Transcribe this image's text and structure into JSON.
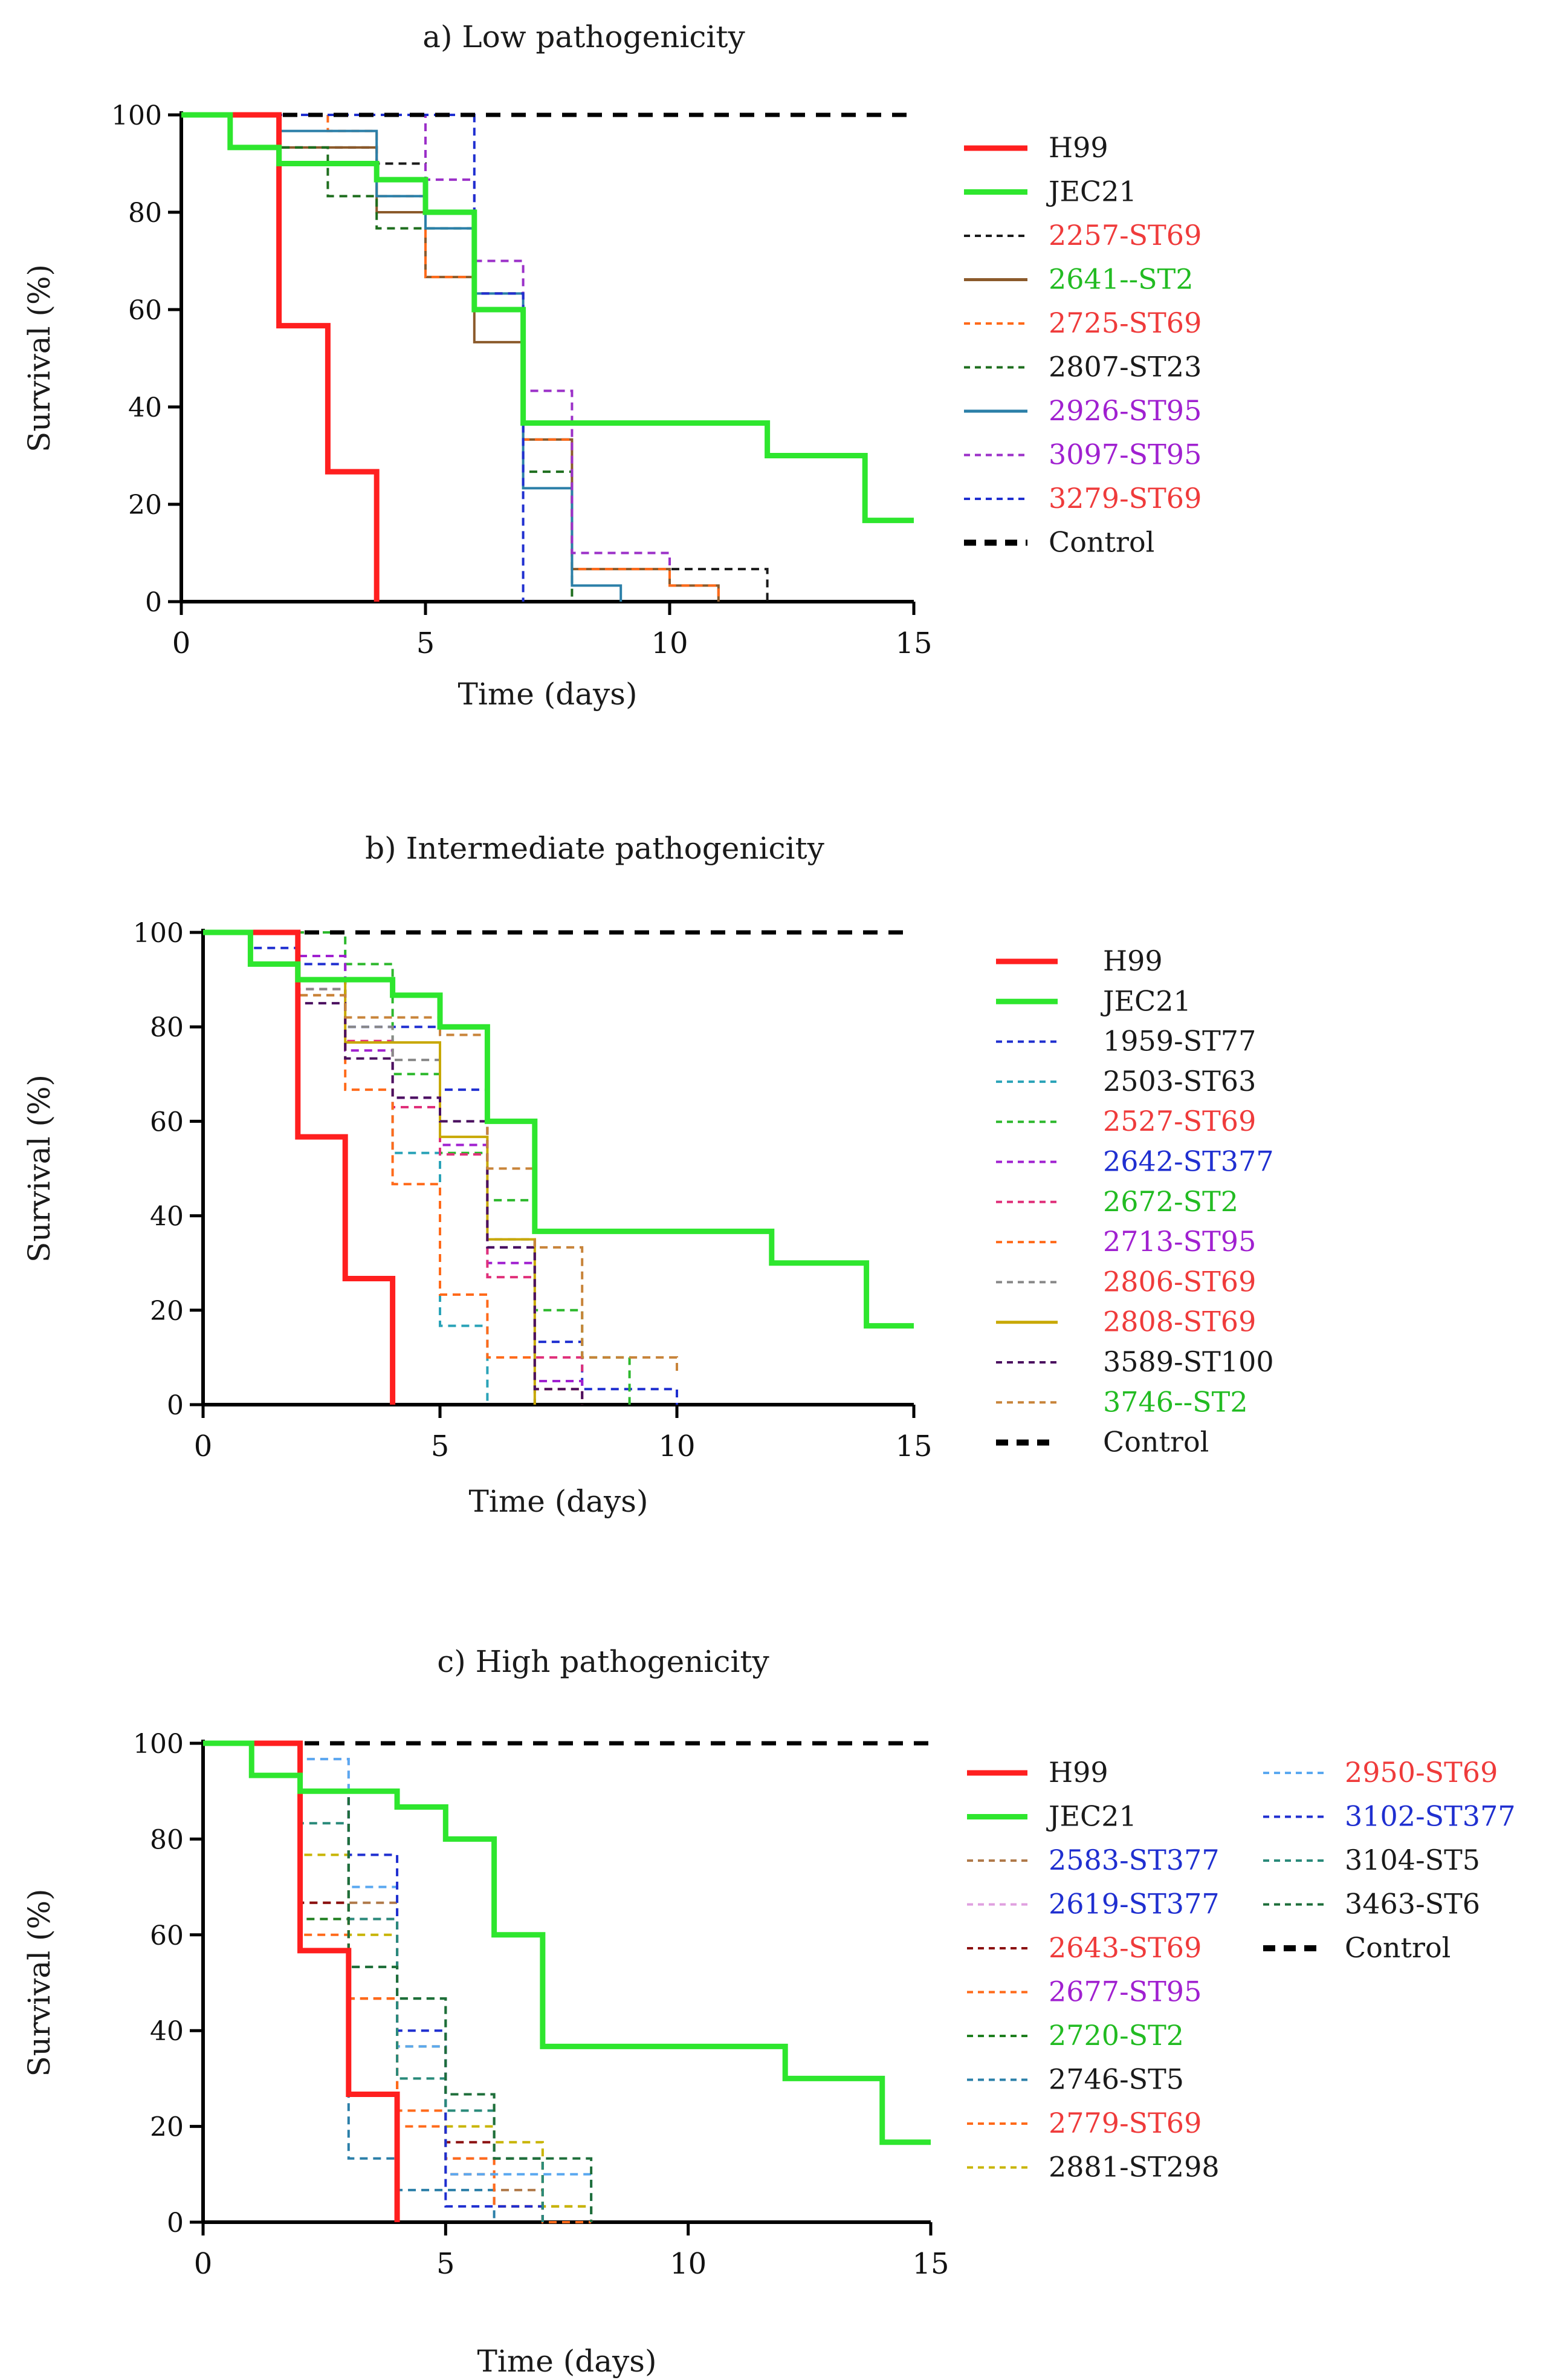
{
  "chart_data": [
    {
      "type": "line",
      "title": "a) Low pathogenicity",
      "xlabel": "Time (days)",
      "ylabel": "Survival (%)",
      "xlim": [
        0,
        15
      ],
      "ylim": [
        0,
        100
      ],
      "xticks": [
        0,
        5,
        10,
        15
      ],
      "yticks": [
        0,
        20,
        40,
        60,
        80,
        100
      ],
      "legend_columns": 1,
      "series": [
        {
          "name": "H99",
          "color": "#ff1f1f",
          "label_color": "#1a1a1a",
          "style": "solid",
          "width": 9,
          "x": [
            0,
            2,
            3,
            4
          ],
          "y": [
            100,
            56.7,
            26.7,
            0
          ]
        },
        {
          "name": "JEC21",
          "color": "#2ee62e",
          "label_color": "#1a1a1a",
          "style": "solid",
          "width": 9,
          "x": [
            0,
            1,
            2,
            4,
            5,
            6,
            7,
            12,
            14,
            15
          ],
          "y": [
            100,
            93.3,
            90,
            86.7,
            80,
            60,
            36.7,
            30,
            16.7,
            16.7
          ]
        },
        {
          "name": "2257-ST69",
          "color": "#1a1a1a",
          "label_color": "#ef3b3b",
          "style": "dashed",
          "width": 4,
          "x": [
            0,
            2,
            4,
            5,
            6,
            7,
            8,
            10,
            12
          ],
          "y": [
            100,
            93.3,
            90,
            80,
            63.3,
            33.3,
            10,
            6.7,
            0
          ]
        },
        {
          "name": "2641--ST2",
          "color": "#8b5a2b",
          "label_color": "#22bb22",
          "style": "solid",
          "width": 4,
          "x": [
            0,
            2,
            4,
            5,
            6,
            7,
            8,
            10,
            11
          ],
          "y": [
            100,
            93.3,
            80,
            66.7,
            53.3,
            33.3,
            6.7,
            3.3,
            0
          ]
        },
        {
          "name": "2725-ST69",
          "color": "#ff6a1a",
          "label_color": "#ef3b3b",
          "style": "dashed",
          "width": 4,
          "x": [
            0,
            3,
            4,
            5,
            6,
            7,
            8,
            10,
            11
          ],
          "y": [
            100,
            96.7,
            83.3,
            66.7,
            63.3,
            33.3,
            6.7,
            3.3,
            0
          ]
        },
        {
          "name": "2807-ST23",
          "color": "#1e6e1e",
          "label_color": "#1a1a1a",
          "style": "dashed",
          "width": 4,
          "x": [
            0,
            2,
            3,
            4,
            6,
            7,
            8
          ],
          "y": [
            100,
            93.3,
            83.3,
            76.7,
            60,
            26.7,
            0
          ]
        },
        {
          "name": "2926-ST95",
          "color": "#2b7fa8",
          "label_color": "#a020d0",
          "style": "solid",
          "width": 4,
          "x": [
            0,
            2,
            4,
            5,
            6,
            7,
            8,
            9
          ],
          "y": [
            100,
            96.7,
            83.3,
            76.7,
            63.3,
            23.3,
            3.3,
            0
          ]
        },
        {
          "name": "3097-ST95",
          "color": "#9b30c8",
          "label_color": "#a020d0",
          "style": "dashed",
          "width": 4,
          "x": [
            0,
            5,
            6,
            7,
            8,
            10
          ],
          "y": [
            100,
            86.7,
            70,
            43.3,
            10,
            6.7
          ]
        },
        {
          "name": "3279-ST69",
          "color": "#1f2fd0",
          "label_color": "#ef3b3b",
          "style": "dashed",
          "width": 4,
          "x": [
            0,
            6,
            7
          ],
          "y": [
            100,
            63.3,
            0
          ]
        },
        {
          "name": "Control",
          "color": "#000000",
          "label_color": "#1a1a1a",
          "style": "bold-dashed",
          "width": 7,
          "x": [
            0,
            15
          ],
          "y": [
            100,
            100
          ]
        }
      ]
    },
    {
      "type": "line",
      "title": "b) Intermediate pathogenicity",
      "xlabel": "Time (days)",
      "ylabel": "Survival (%)",
      "xlim": [
        0,
        15
      ],
      "ylim": [
        0,
        100
      ],
      "xticks": [
        0,
        5,
        10,
        15
      ],
      "yticks": [
        0,
        20,
        40,
        60,
        80,
        100
      ],
      "legend_columns": 1,
      "series": [
        {
          "name": "H99",
          "color": "#ff1f1f",
          "label_color": "#1a1a1a",
          "style": "solid",
          "width": 9,
          "x": [
            0,
            2,
            3,
            4
          ],
          "y": [
            100,
            56.7,
            26.7,
            0
          ]
        },
        {
          "name": "JEC21",
          "color": "#2ee62e",
          "label_color": "#1a1a1a",
          "style": "solid",
          "width": 9,
          "x": [
            0,
            1,
            2,
            4,
            5,
            6,
            7,
            12,
            14,
            15
          ],
          "y": [
            100,
            93.3,
            90,
            86.7,
            80,
            60,
            36.7,
            30,
            16.7,
            16.7
          ]
        },
        {
          "name": "1959-ST77",
          "color": "#1f2fd0",
          "label_color": "#1a1a1a",
          "style": "dashed",
          "width": 4,
          "x": [
            0,
            1,
            2,
            3,
            5,
            6,
            7,
            8,
            10
          ],
          "y": [
            100,
            96.7,
            93.3,
            80,
            66.7,
            33.3,
            13.3,
            3.3,
            0
          ]
        },
        {
          "name": "2503-ST63",
          "color": "#2aa3b8",
          "label_color": "#1a1a1a",
          "style": "dashed",
          "width": 4,
          "x": [
            0,
            2,
            3,
            4,
            5,
            6
          ],
          "y": [
            100,
            90,
            73.3,
            53.3,
            16.7,
            0
          ]
        },
        {
          "name": "2527-ST69",
          "color": "#2cb82c",
          "label_color": "#ef3b3b",
          "style": "dashed",
          "width": 4,
          "x": [
            0,
            3,
            4,
            5,
            6,
            7,
            8,
            9
          ],
          "y": [
            100,
            93.3,
            70,
            53.3,
            43.3,
            20,
            10,
            0
          ]
        },
        {
          "name": "2642-ST377",
          "color": "#a020d0",
          "label_color": "#1f2fd0",
          "style": "dashed",
          "width": 4,
          "x": [
            0,
            2,
            3,
            4,
            5,
            6,
            7,
            8
          ],
          "y": [
            100,
            95,
            75,
            65,
            55,
            30,
            5,
            0
          ]
        },
        {
          "name": "2672-ST2",
          "color": "#e0307a",
          "label_color": "#22bb22",
          "style": "dashed",
          "width": 4,
          "x": [
            0,
            2,
            3,
            4,
            5,
            6,
            7,
            8
          ],
          "y": [
            100,
            88,
            77,
            63,
            53,
            27,
            10,
            7
          ]
        },
        {
          "name": "2713-ST95",
          "color": "#ff6a1a",
          "label_color": "#a020d0",
          "style": "dashed",
          "width": 4,
          "x": [
            0,
            2,
            3,
            4,
            5,
            6,
            7,
            8
          ],
          "y": [
            100,
            86.7,
            66.7,
            46.7,
            23.3,
            10,
            3.3,
            0
          ]
        },
        {
          "name": "2806-ST69",
          "color": "#888888",
          "label_color": "#ef3b3b",
          "style": "dashed",
          "width": 4,
          "x": [
            0,
            2,
            3,
            4,
            5,
            6,
            7
          ],
          "y": [
            100,
            88,
            80,
            73,
            60,
            35,
            0
          ]
        },
        {
          "name": "2808-ST69",
          "color": "#c8a800",
          "label_color": "#ef3b3b",
          "style": "solid",
          "width": 4,
          "x": [
            0,
            2,
            3,
            5,
            6,
            7
          ],
          "y": [
            100,
            90,
            76.7,
            56.7,
            35,
            0
          ]
        },
        {
          "name": "3589-ST100",
          "color": "#4b1060",
          "label_color": "#1a1a1a",
          "style": "dashed",
          "width": 4,
          "x": [
            0,
            2,
            3,
            4,
            5,
            6,
            7,
            8
          ],
          "y": [
            100,
            85,
            73.3,
            65,
            60,
            33.3,
            3.3,
            0
          ]
        },
        {
          "name": "3746--ST2",
          "color": "#c8843a",
          "label_color": "#22bb22",
          "style": "dashed",
          "width": 4,
          "x": [
            0,
            2,
            3,
            5,
            6,
            7,
            8,
            10
          ],
          "y": [
            100,
            86.7,
            82,
            78.3,
            50,
            33.3,
            10,
            6.7
          ]
        },
        {
          "name": "Control",
          "color": "#000000",
          "label_color": "#1a1a1a",
          "style": "bold-dashed",
          "width": 7,
          "x": [
            0,
            15
          ],
          "y": [
            100,
            100
          ]
        }
      ]
    },
    {
      "type": "line",
      "title": "c) High pathogenicity",
      "xlabel": "Time (days)",
      "ylabel": "Survival (%)",
      "xlim": [
        0,
        15
      ],
      "ylim": [
        0,
        100
      ],
      "xticks": [
        0,
        5,
        10,
        15
      ],
      "yticks": [
        0,
        20,
        40,
        60,
        80,
        100
      ],
      "legend_columns": 2,
      "series": [
        {
          "name": "H99",
          "color": "#ff1f1f",
          "label_color": "#1a1a1a",
          "style": "solid",
          "width": 9,
          "x": [
            0,
            2,
            3,
            4
          ],
          "y": [
            100,
            56.7,
            26.7,
            0
          ]
        },
        {
          "name": "JEC21",
          "color": "#2ee62e",
          "label_color": "#1a1a1a",
          "style": "solid",
          "width": 9,
          "x": [
            0,
            1,
            2,
            4,
            5,
            6,
            7,
            12,
            14,
            15
          ],
          "y": [
            100,
            93.3,
            90,
            86.7,
            80,
            60,
            36.7,
            30,
            16.7,
            16.7
          ]
        },
        {
          "name": "2583-ST377",
          "color": "#b07a4a",
          "label_color": "#1f2fd0",
          "style": "dashed",
          "width": 4,
          "x": [
            0,
            2,
            3,
            4,
            5,
            6,
            7,
            8
          ],
          "y": [
            100,
            66.7,
            66.7,
            23.3,
            13.3,
            6.7,
            3.3,
            0
          ]
        },
        {
          "name": "2619-ST377",
          "color": "#e0a0e0",
          "label_color": "#1f2fd0",
          "style": "dashed",
          "width": 4,
          "x": [
            0,
            2,
            3,
            4,
            5,
            6,
            7
          ],
          "y": [
            100,
            96.7,
            63.3,
            36.7,
            13.3,
            3.3,
            0
          ]
        },
        {
          "name": "2643-ST69",
          "color": "#8b1010",
          "label_color": "#ef3b3b",
          "style": "dashed",
          "width": 4,
          "x": [
            0,
            2,
            3,
            4,
            5,
            6,
            7
          ],
          "y": [
            100,
            66.7,
            46.7,
            23.3,
            16.7,
            13.3,
            0
          ]
        },
        {
          "name": "2677-ST95",
          "color": "#ff6a1a",
          "label_color": "#a020d0",
          "style": "dashed",
          "width": 4,
          "x": [
            0,
            2,
            3,
            4,
            5,
            6,
            7,
            8
          ],
          "y": [
            100,
            60,
            46.7,
            23.3,
            13.3,
            3.3,
            0,
            0
          ]
        },
        {
          "name": "2720-ST2",
          "color": "#1e7e1e",
          "label_color": "#22bb22",
          "style": "dashed",
          "width": 4,
          "x": [
            0,
            2,
            3,
            4,
            5,
            6,
            7
          ],
          "y": [
            100,
            63.3,
            53.3,
            46.7,
            26.7,
            13.3,
            0
          ]
        },
        {
          "name": "2746-ST5",
          "color": "#2b7fa8",
          "label_color": "#1a1a1a",
          "style": "dashed",
          "width": 4,
          "x": [
            0,
            2,
            3,
            4,
            5,
            6
          ],
          "y": [
            100,
            56.7,
            13.3,
            6.7,
            6.7,
            0
          ]
        },
        {
          "name": "2779-ST69",
          "color": "#ff6a1a",
          "label_color": "#ef3b3b",
          "style": "dashed",
          "width": 4,
          "x": [
            0,
            2,
            3,
            4,
            5,
            6,
            7
          ],
          "y": [
            100,
            90,
            46.7,
            20,
            10,
            3.3,
            0
          ]
        },
        {
          "name": "2881-ST298",
          "color": "#c8b400",
          "label_color": "#1a1a1a",
          "style": "dashed",
          "width": 4,
          "x": [
            0,
            2,
            3,
            4,
            5,
            6,
            7,
            8
          ],
          "y": [
            100,
            76.7,
            60,
            36.7,
            20,
            16.7,
            3.3,
            0
          ]
        },
        {
          "name": "2950-ST69",
          "color": "#5aa8f0",
          "label_color": "#ef3b3b",
          "style": "dashed",
          "width": 4,
          "x": [
            0,
            2,
            3,
            4,
            5,
            6,
            8
          ],
          "y": [
            100,
            96.7,
            70,
            36.7,
            10,
            10,
            0
          ]
        },
        {
          "name": "3102-ST377",
          "color": "#1f2fd0",
          "label_color": "#1f2fd0",
          "style": "dashed",
          "width": 4,
          "x": [
            0,
            2,
            3,
            4,
            5,
            7
          ],
          "y": [
            100,
            90,
            76.7,
            40,
            3.3,
            0
          ]
        },
        {
          "name": "3104-ST5",
          "color": "#2a8a7a",
          "label_color": "#1a1a1a",
          "style": "dashed",
          "width": 4,
          "x": [
            0,
            2,
            3,
            4,
            5,
            6,
            7
          ],
          "y": [
            100,
            83.3,
            63.3,
            30,
            23.3,
            13.3,
            0
          ]
        },
        {
          "name": "3463-ST6",
          "color": "#1e6e3a",
          "label_color": "#1a1a1a",
          "style": "dashed",
          "width": 4,
          "x": [
            0,
            2,
            3,
            4,
            5,
            6,
            7,
            8
          ],
          "y": [
            100,
            90,
            53.3,
            46.7,
            26.7,
            13.3,
            13.3,
            0
          ]
        },
        {
          "name": "Control",
          "color": "#000000",
          "label_color": "#1a1a1a",
          "style": "bold-dashed",
          "width": 7,
          "x": [
            0,
            15
          ],
          "y": [
            100,
            100
          ]
        }
      ]
    }
  ]
}
